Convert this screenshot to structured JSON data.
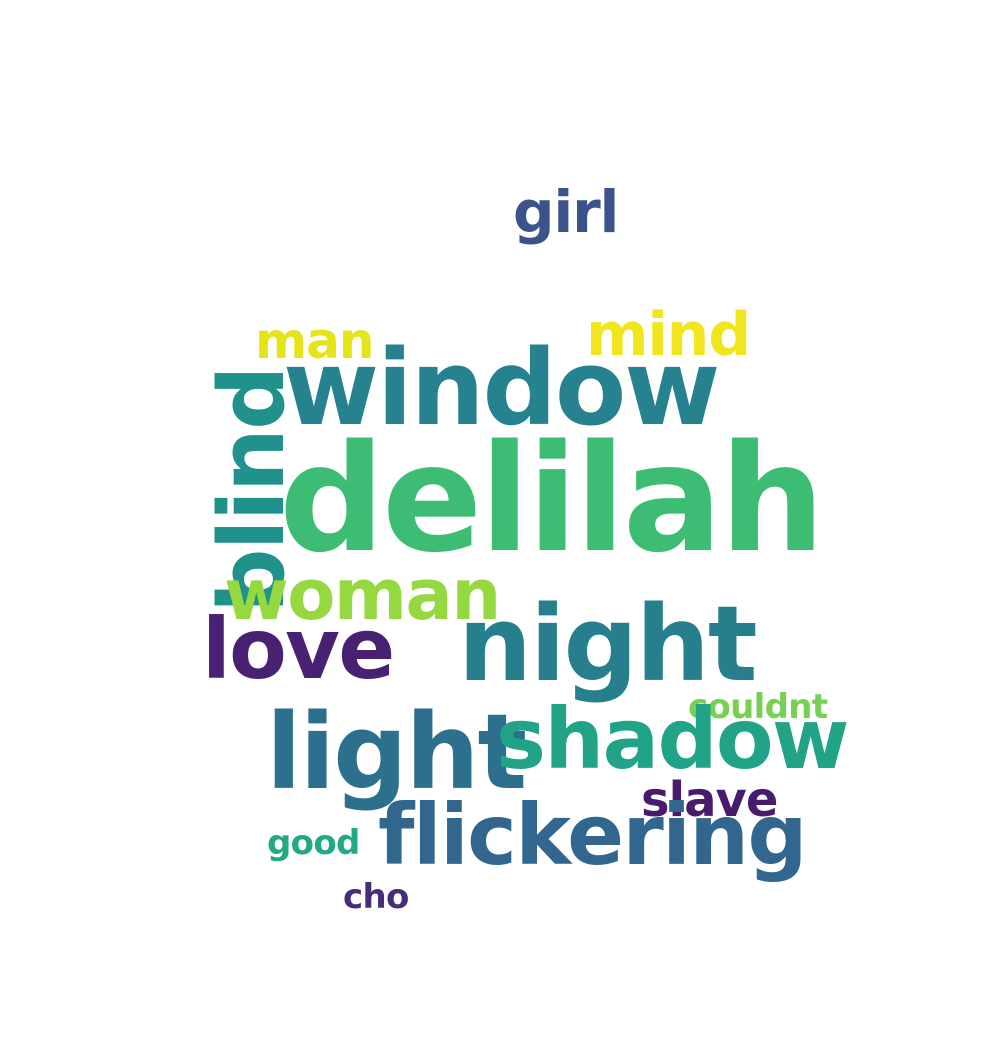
{
  "words": {
    "delilah": {
      "text": "delilah",
      "color": "#3dbc74"
    },
    "window": {
      "text": "window",
      "color": "#26828e"
    },
    "night": {
      "text": "night",
      "color": "#277f8e"
    },
    "light": {
      "text": "light",
      "color": "#2d708e"
    },
    "blind": {
      "text": "blind",
      "color": "#21918c"
    },
    "woman": {
      "text": "woman",
      "color": "#95d840"
    },
    "love": {
      "text": "love",
      "color": "#482173"
    },
    "shadow": {
      "text": "shadow",
      "color": "#20a386"
    },
    "flickering": {
      "text": "flickering",
      "color": "#31678e"
    },
    "mind": {
      "text": "mind",
      "color": "#f1e51d"
    },
    "man": {
      "text": "man",
      "color": "#e5e419"
    },
    "girl": {
      "text": "girl",
      "color": "#3b528b"
    },
    "slave": {
      "text": "slave",
      "color": "#481b6d"
    },
    "couldnt": {
      "text": "couldnt",
      "color": "#75d054"
    },
    "good": {
      "text": "good",
      "color": "#22a884"
    },
    "cho": {
      "text": "cho",
      "color": "#472c7a"
    }
  }
}
